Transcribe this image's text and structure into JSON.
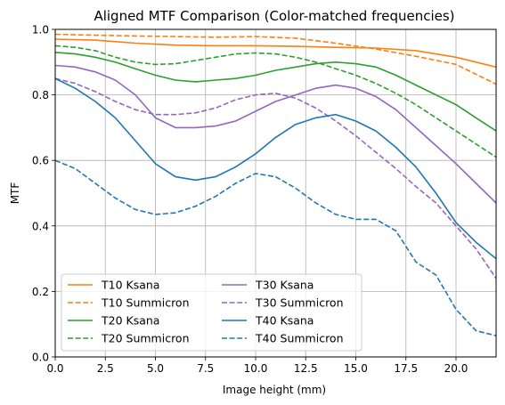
{
  "chart_data": {
    "type": "line",
    "title": "Aligned MTF Comparison (Color-matched frequencies)",
    "xlabel": "Image height (mm)",
    "ylabel": "MTF",
    "xlim": [
      0,
      22
    ],
    "ylim": [
      0,
      1
    ],
    "xticks": [
      "0.0",
      "2.5",
      "5.0",
      "7.5",
      "10.0",
      "12.5",
      "15.0",
      "17.5",
      "20.0"
    ],
    "yticks": [
      "0.0",
      "0.2",
      "0.4",
      "0.6",
      "0.8",
      "1.0"
    ],
    "grid": true,
    "legend": {
      "position": "lower-left",
      "columns": 2
    },
    "series": [
      {
        "name": "T10 Ksana",
        "color": "#ff7f0e",
        "dash": "solid",
        "x": [
          0,
          2,
          4,
          6,
          8,
          10,
          12,
          14,
          16,
          18,
          20,
          22
        ],
        "y": [
          0.97,
          0.967,
          0.958,
          0.952,
          0.95,
          0.95,
          0.948,
          0.945,
          0.943,
          0.935,
          0.915,
          0.885
        ]
      },
      {
        "name": "T10 Summicron",
        "color": "#ff7f0e",
        "dash": "dashed",
        "x": [
          0,
          2,
          4,
          6,
          8,
          10,
          12,
          14,
          16,
          18,
          20,
          22
        ],
        "y": [
          0.985,
          0.982,
          0.98,
          0.978,
          0.976,
          0.978,
          0.973,
          0.958,
          0.94,
          0.918,
          0.893,
          0.833
        ]
      },
      {
        "name": "T20 Ksana",
        "color": "#2ca02c",
        "dash": "solid",
        "x": [
          0,
          1,
          2,
          3,
          4,
          5,
          6,
          7,
          8,
          9,
          10,
          11,
          12,
          13,
          14,
          15,
          16,
          17,
          18,
          19,
          20,
          21,
          22
        ],
        "y": [
          0.93,
          0.925,
          0.915,
          0.9,
          0.88,
          0.86,
          0.845,
          0.84,
          0.845,
          0.85,
          0.86,
          0.875,
          0.885,
          0.895,
          0.9,
          0.895,
          0.885,
          0.86,
          0.83,
          0.8,
          0.77,
          0.73,
          0.69
        ]
      },
      {
        "name": "T20 Summicron",
        "color": "#2ca02c",
        "dash": "dashed",
        "x": [
          0,
          1,
          2,
          3,
          4,
          5,
          6,
          7,
          8,
          9,
          10,
          11,
          12,
          13,
          14,
          15,
          16,
          17,
          18,
          19,
          20,
          21,
          22
        ],
        "y": [
          0.95,
          0.945,
          0.935,
          0.915,
          0.9,
          0.893,
          0.895,
          0.905,
          0.915,
          0.925,
          0.928,
          0.925,
          0.915,
          0.9,
          0.88,
          0.86,
          0.835,
          0.805,
          0.77,
          0.73,
          0.69,
          0.65,
          0.61
        ]
      },
      {
        "name": "T30 Ksana",
        "color": "#9467bd",
        "dash": "solid",
        "x": [
          0,
          1,
          2,
          3,
          4,
          5,
          6,
          7,
          8,
          9,
          10,
          11,
          12,
          13,
          14,
          15,
          16,
          17,
          18,
          19,
          20,
          21,
          22
        ],
        "y": [
          0.89,
          0.885,
          0.87,
          0.845,
          0.8,
          0.73,
          0.7,
          0.7,
          0.705,
          0.72,
          0.75,
          0.78,
          0.8,
          0.82,
          0.83,
          0.82,
          0.795,
          0.755,
          0.7,
          0.645,
          0.59,
          0.53,
          0.47
        ]
      },
      {
        "name": "T30 Summicron",
        "color": "#9467bd",
        "dash": "dashed",
        "x": [
          0,
          1,
          2,
          3,
          4,
          5,
          6,
          7,
          8,
          9,
          10,
          11,
          12,
          13,
          14,
          15,
          16,
          17,
          18,
          19,
          20,
          21,
          22
        ],
        "y": [
          0.85,
          0.835,
          0.81,
          0.78,
          0.755,
          0.74,
          0.74,
          0.745,
          0.76,
          0.785,
          0.8,
          0.805,
          0.79,
          0.76,
          0.72,
          0.675,
          0.625,
          0.575,
          0.52,
          0.47,
          0.4,
          0.33,
          0.24
        ]
      },
      {
        "name": "T40 Ksana",
        "color": "#1f77b4",
        "dash": "solid",
        "x": [
          0,
          1,
          2,
          3,
          4,
          5,
          6,
          7,
          8,
          9,
          10,
          11,
          12,
          13,
          14,
          15,
          16,
          17,
          18,
          19,
          20,
          21,
          22
        ],
        "y": [
          0.85,
          0.82,
          0.78,
          0.73,
          0.66,
          0.59,
          0.55,
          0.54,
          0.55,
          0.58,
          0.62,
          0.67,
          0.71,
          0.73,
          0.74,
          0.72,
          0.69,
          0.64,
          0.58,
          0.5,
          0.41,
          0.35,
          0.3
        ]
      },
      {
        "name": "T40 Summicron",
        "color": "#1f77b4",
        "dash": "dashed",
        "x": [
          0,
          1,
          2,
          3,
          4,
          5,
          6,
          7,
          8,
          9,
          10,
          11,
          12,
          13,
          14,
          15,
          16,
          17,
          18,
          19,
          20,
          21,
          22
        ],
        "y": [
          0.6,
          0.575,
          0.53,
          0.485,
          0.45,
          0.435,
          0.44,
          0.46,
          0.49,
          0.53,
          0.56,
          0.55,
          0.515,
          0.47,
          0.435,
          0.42,
          0.42,
          0.385,
          0.29,
          0.25,
          0.145,
          0.08,
          0.065
        ]
      }
    ]
  }
}
